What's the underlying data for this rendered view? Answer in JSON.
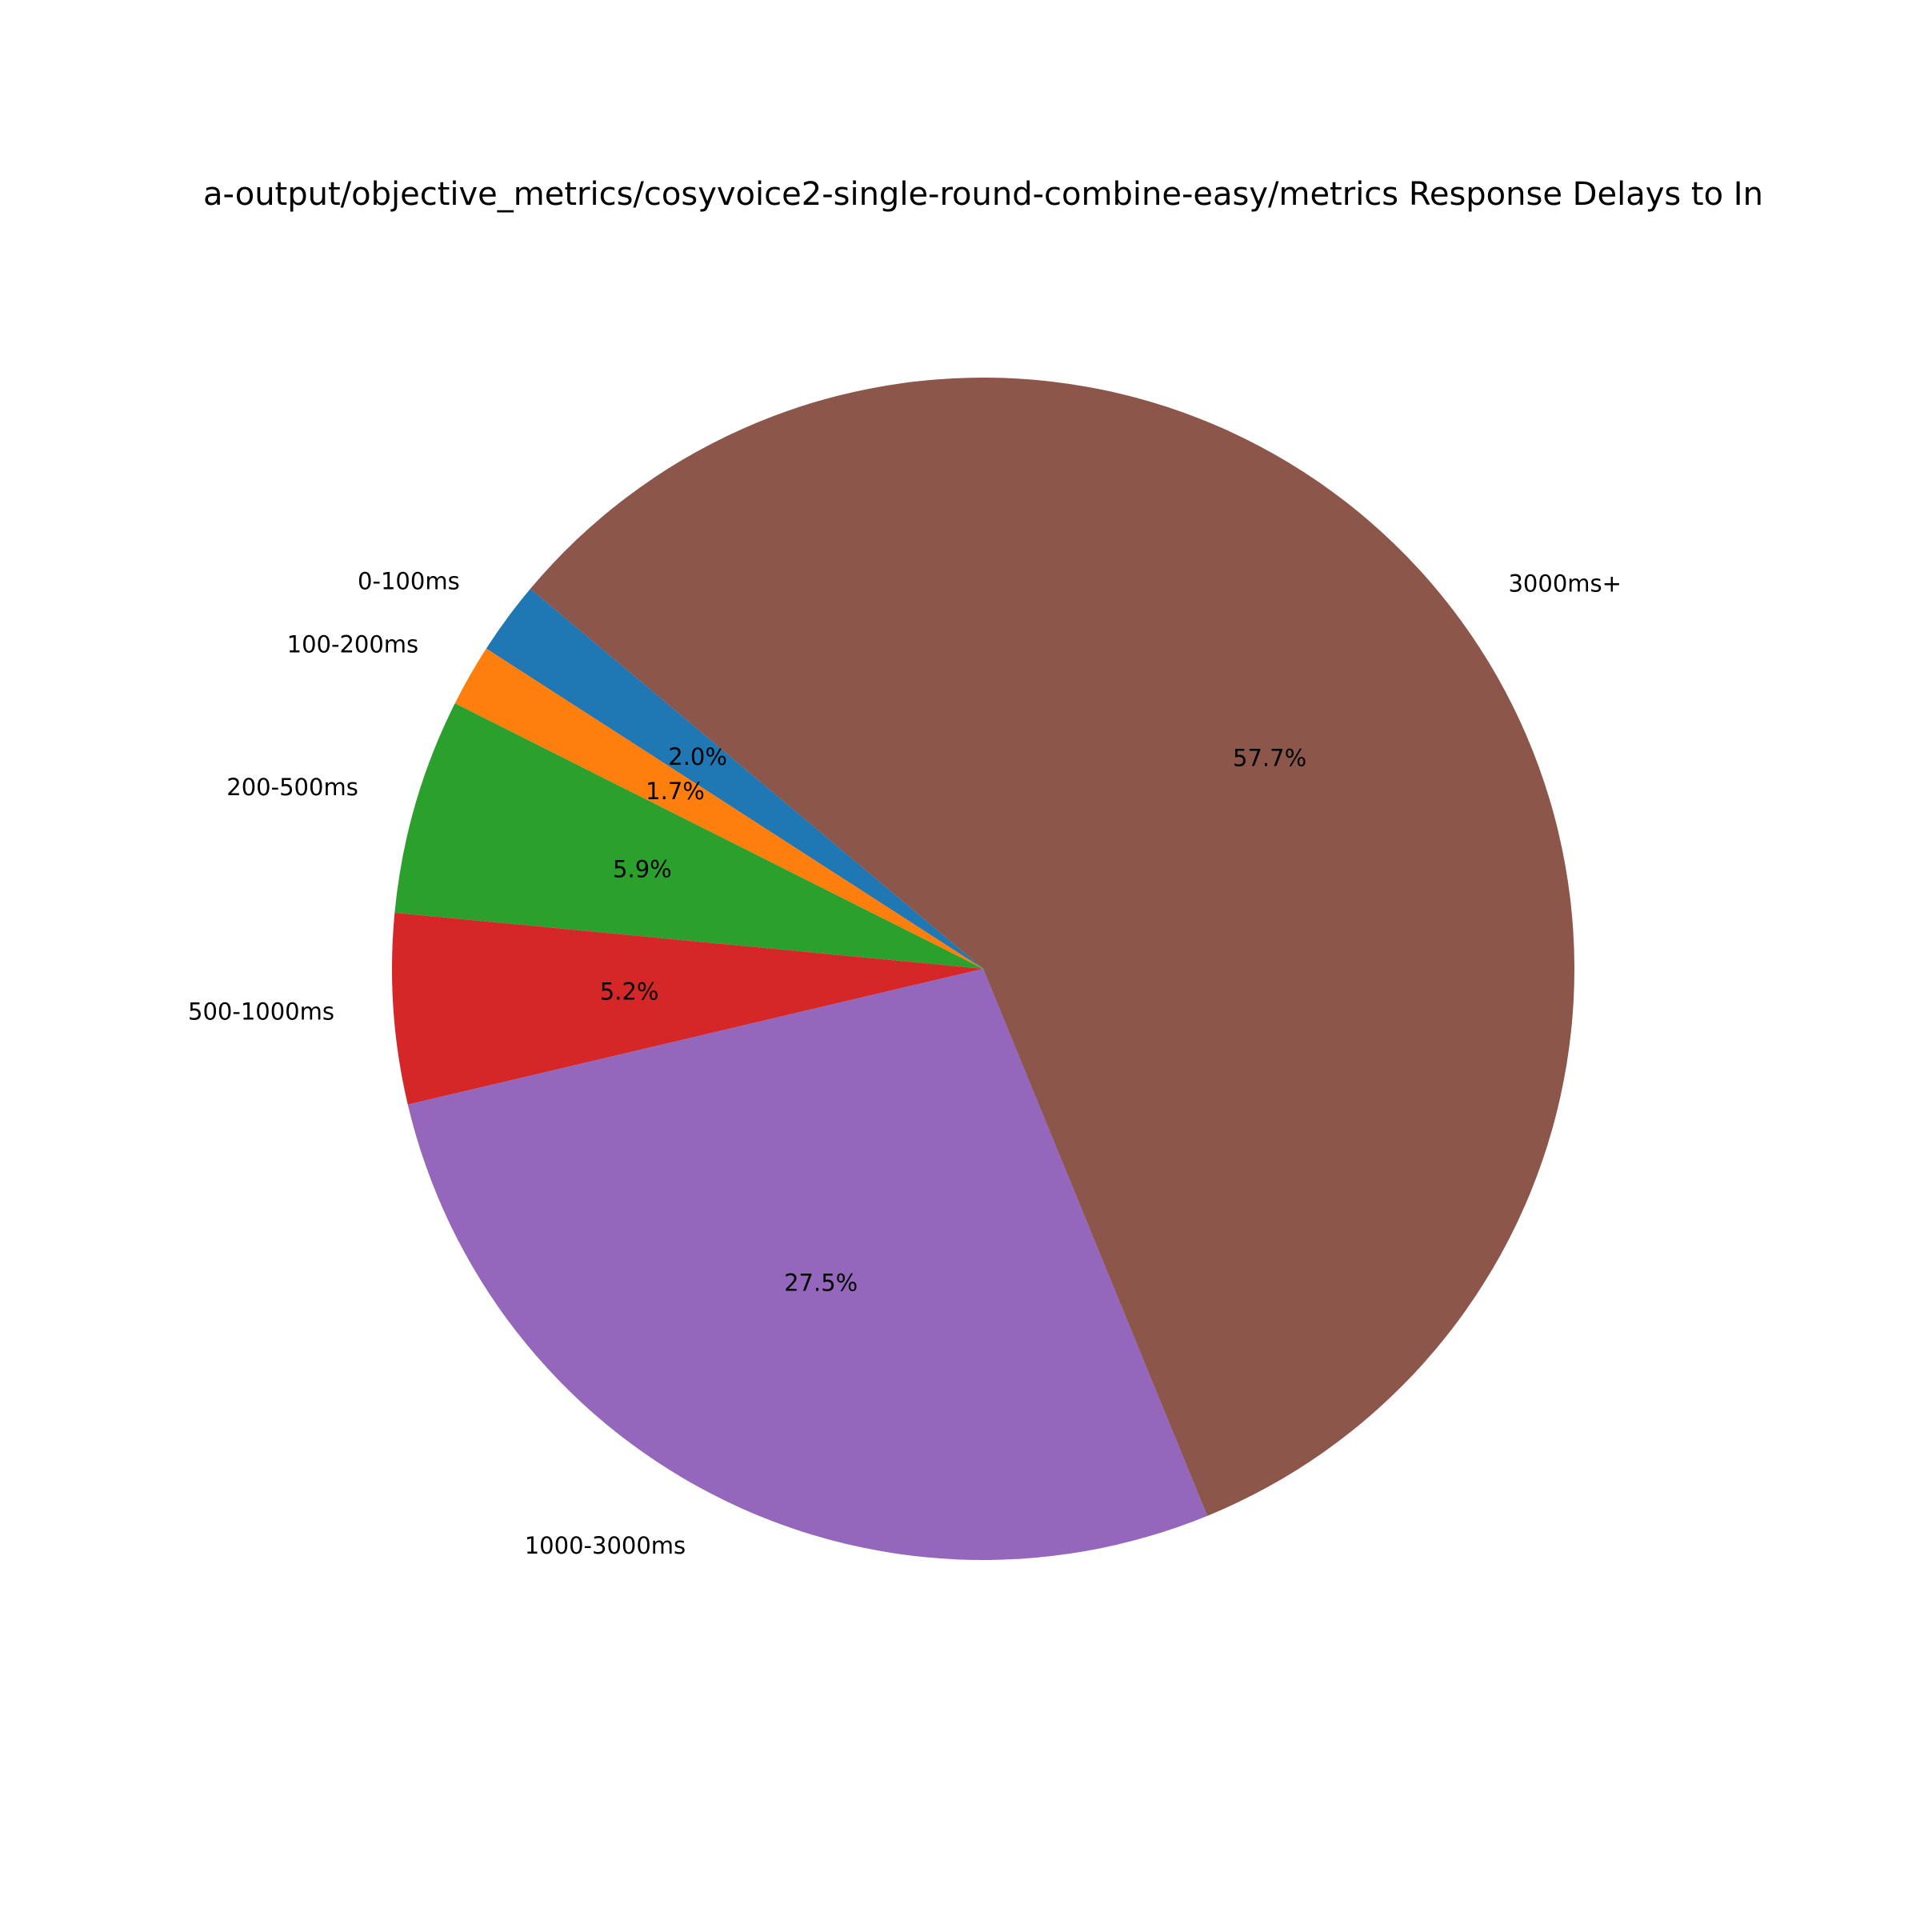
{
  "chart_data": {
    "type": "pie",
    "title": "a-output/objective_metrics/cosyvoice2-single-round-combine-easy/metrics Response Delays to In",
    "categories": [
      "0-100ms",
      "100-200ms",
      "200-500ms",
      "500-1000ms",
      "1000-3000ms",
      "3000ms+"
    ],
    "values": [
      2.0,
      1.7,
      5.9,
      5.2,
      27.5,
      57.7
    ],
    "value_labels": [
      "2.0%",
      "1.7%",
      "5.9%",
      "5.2%",
      "27.5%",
      "57.7%"
    ],
    "colors": [
      "#1f77b4",
      "#ff7f0e",
      "#2ca02c",
      "#d62728",
      "#9467bd",
      "#8c564b"
    ],
    "start_angle": 140
  }
}
